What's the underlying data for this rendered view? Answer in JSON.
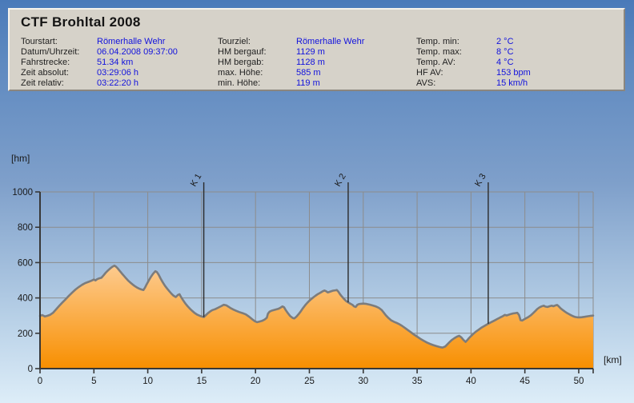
{
  "header": {
    "title": "CTF Brohltal 2008",
    "columns": [
      {
        "rows": [
          {
            "label": "Tourstart:",
            "value": "Römerhalle Wehr"
          },
          {
            "label": "Datum/Uhrzeit:",
            "value": "06.04.2008 09:37:00"
          },
          {
            "label": "Fahrstrecke:",
            "value": "51.34 km"
          },
          {
            "label": "Zeit absolut:",
            "value": "03:29:06 h"
          },
          {
            "label": "Zeit relativ:",
            "value": "03:22:20 h"
          }
        ]
      },
      {
        "rows": [
          {
            "label": "Tourziel:",
            "value": "Römerhalle Wehr"
          },
          {
            "label": "HM bergauf:",
            "value": "1129 m"
          },
          {
            "label": "HM bergab:",
            "value": "1128 m"
          },
          {
            "label": "max. Höhe:",
            "value": "585 m"
          },
          {
            "label": "min. Höhe:",
            "value": "119 m"
          }
        ]
      },
      {
        "rows": [
          {
            "label": "Temp. min:",
            "value": "2 °C"
          },
          {
            "label": "Temp. max:",
            "value": "8 °C"
          },
          {
            "label": "Temp. AV:",
            "value": "4 °C"
          },
          {
            "label": "HF AV:",
            "value": "153 bpm"
          },
          {
            "label": "AVS:",
            "value": "15 km/h"
          }
        ]
      }
    ]
  },
  "colors": {
    "value_text": "#1212dd",
    "label_text": "#1f1f1f",
    "panel_bg": "#d6d2c9",
    "bg_top": "#4a7ab9",
    "bg_bottom": "#ddedf8"
  },
  "chart_data": {
    "type": "area",
    "title": "CTF Brohltal 2008 — Höhenprofil",
    "xlabel": "[km]",
    "ylabel": "[hm]",
    "xlim": [
      0,
      51.34
    ],
    "ylim": [
      0,
      1000
    ],
    "xticks": [
      0,
      5,
      10,
      15,
      20,
      25,
      30,
      35,
      40,
      45,
      50
    ],
    "yticks": [
      0,
      200,
      400,
      600,
      800,
      1000
    ],
    "grid": true,
    "legend": "none",
    "markers": [
      {
        "label": "K 1",
        "km": 15.2
      },
      {
        "label": "K 2",
        "km": 28.6
      },
      {
        "label": "K 3",
        "km": 41.6
      }
    ],
    "colors": {
      "fill_top": "#fdcc92",
      "fill_bottom": "#f88f00",
      "line": "#7c7c7c",
      "grid": "#8c8c8c",
      "axis": "#383838",
      "axis_text": "#1a1a1a",
      "marker": "#2a2a2a"
    },
    "series": [
      {
        "name": "elevation_hm",
        "points": [
          [
            0.0,
            298
          ],
          [
            0.2,
            303
          ],
          [
            0.45,
            295
          ],
          [
            0.7,
            299
          ],
          [
            0.95,
            305
          ],
          [
            1.2,
            316
          ],
          [
            1.5,
            336
          ],
          [
            1.8,
            356
          ],
          [
            2.1,
            376
          ],
          [
            2.4,
            394
          ],
          [
            2.7,
            413
          ],
          [
            3.0,
            431
          ],
          [
            3.3,
            448
          ],
          [
            3.6,
            462
          ],
          [
            3.9,
            474
          ],
          [
            4.2,
            484
          ],
          [
            4.5,
            491
          ],
          [
            4.75,
            497
          ],
          [
            5.0,
            504
          ],
          [
            5.15,
            499
          ],
          [
            5.3,
            506
          ],
          [
            5.5,
            511
          ],
          [
            5.7,
            514
          ],
          [
            5.9,
            528
          ],
          [
            6.1,
            543
          ],
          [
            6.3,
            555
          ],
          [
            6.5,
            566
          ],
          [
            6.7,
            576
          ],
          [
            6.9,
            583
          ],
          [
            7.05,
            577
          ],
          [
            7.2,
            568
          ],
          [
            7.4,
            553
          ],
          [
            7.6,
            538
          ],
          [
            7.8,
            524
          ],
          [
            8.0,
            510
          ],
          [
            8.2,
            497
          ],
          [
            8.4,
            486
          ],
          [
            8.6,
            476
          ],
          [
            8.8,
            467
          ],
          [
            9.0,
            459
          ],
          [
            9.2,
            453
          ],
          [
            9.4,
            448
          ],
          [
            9.6,
            445
          ],
          [
            9.75,
            459
          ],
          [
            9.9,
            477
          ],
          [
            10.1,
            499
          ],
          [
            10.3,
            520
          ],
          [
            10.5,
            537
          ],
          [
            10.7,
            551
          ],
          [
            10.85,
            546
          ],
          [
            11.0,
            532
          ],
          [
            11.2,
            509
          ],
          [
            11.4,
            488
          ],
          [
            11.6,
            469
          ],
          [
            11.8,
            453
          ],
          [
            12.0,
            438
          ],
          [
            12.2,
            424
          ],
          [
            12.4,
            412
          ],
          [
            12.6,
            405
          ],
          [
            12.8,
            417
          ],
          [
            12.95,
            421
          ],
          [
            13.1,
            404
          ],
          [
            13.3,
            385
          ],
          [
            13.5,
            368
          ],
          [
            13.7,
            353
          ],
          [
            13.9,
            340
          ],
          [
            14.1,
            328
          ],
          [
            14.35,
            315
          ],
          [
            14.6,
            305
          ],
          [
            14.85,
            298
          ],
          [
            15.05,
            294
          ],
          [
            15.2,
            292
          ],
          [
            15.4,
            303
          ],
          [
            15.6,
            315
          ],
          [
            15.8,
            324
          ],
          [
            16.0,
            331
          ],
          [
            16.25,
            336
          ],
          [
            16.5,
            344
          ],
          [
            16.8,
            353
          ],
          [
            17.05,
            361
          ],
          [
            17.3,
            358
          ],
          [
            17.5,
            350
          ],
          [
            17.7,
            342
          ],
          [
            17.95,
            334
          ],
          [
            18.2,
            327
          ],
          [
            18.5,
            320
          ],
          [
            18.8,
            314
          ],
          [
            19.1,
            307
          ],
          [
            19.4,
            294
          ],
          [
            19.7,
            279
          ],
          [
            19.95,
            268
          ],
          [
            20.15,
            263
          ],
          [
            20.35,
            266
          ],
          [
            20.6,
            270
          ],
          [
            20.85,
            278
          ],
          [
            21.05,
            288
          ],
          [
            21.15,
            311
          ],
          [
            21.3,
            322
          ],
          [
            21.5,
            328
          ],
          [
            21.7,
            331
          ],
          [
            21.9,
            335
          ],
          [
            22.1,
            338
          ],
          [
            22.3,
            344
          ],
          [
            22.5,
            352
          ],
          [
            22.65,
            347
          ],
          [
            22.8,
            331
          ],
          [
            23.0,
            314
          ],
          [
            23.2,
            298
          ],
          [
            23.45,
            287
          ],
          [
            23.6,
            284
          ],
          [
            23.8,
            294
          ],
          [
            24.0,
            308
          ],
          [
            24.2,
            324
          ],
          [
            24.4,
            342
          ],
          [
            24.6,
            358
          ],
          [
            24.8,
            372
          ],
          [
            25.0,
            384
          ],
          [
            25.2,
            395
          ],
          [
            25.4,
            405
          ],
          [
            25.6,
            414
          ],
          [
            25.8,
            422
          ],
          [
            26.0,
            429
          ],
          [
            26.2,
            436
          ],
          [
            26.4,
            442
          ],
          [
            26.55,
            438
          ],
          [
            26.7,
            431
          ],
          [
            26.85,
            434
          ],
          [
            27.0,
            437
          ],
          [
            27.2,
            441
          ],
          [
            27.4,
            443
          ],
          [
            27.55,
            445
          ],
          [
            27.7,
            435
          ],
          [
            27.85,
            421
          ],
          [
            28.0,
            409
          ],
          [
            28.2,
            395
          ],
          [
            28.4,
            383
          ],
          [
            28.6,
            375
          ],
          [
            28.8,
            368
          ],
          [
            29.0,
            361
          ],
          [
            29.15,
            352
          ],
          [
            29.3,
            349
          ],
          [
            29.45,
            361
          ],
          [
            29.6,
            365
          ],
          [
            29.8,
            367
          ],
          [
            30.0,
            368
          ],
          [
            30.3,
            366
          ],
          [
            30.6,
            362
          ],
          [
            30.9,
            357
          ],
          [
            31.2,
            351
          ],
          [
            31.45,
            344
          ],
          [
            31.7,
            332
          ],
          [
            31.9,
            317
          ],
          [
            32.1,
            302
          ],
          [
            32.35,
            286
          ],
          [
            32.6,
            273
          ],
          [
            32.85,
            265
          ],
          [
            33.1,
            259
          ],
          [
            33.35,
            251
          ],
          [
            33.6,
            242
          ],
          [
            33.85,
            231
          ],
          [
            34.1,
            220
          ],
          [
            34.4,
            207
          ],
          [
            34.7,
            193
          ],
          [
            35.0,
            181
          ],
          [
            35.3,
            169
          ],
          [
            35.6,
            158
          ],
          [
            35.9,
            148
          ],
          [
            36.2,
            140
          ],
          [
            36.5,
            133
          ],
          [
            36.8,
            127
          ],
          [
            37.1,
            122
          ],
          [
            37.35,
            119
          ],
          [
            37.6,
            125
          ],
          [
            37.8,
            137
          ],
          [
            38.0,
            150
          ],
          [
            38.2,
            161
          ],
          [
            38.45,
            172
          ],
          [
            38.7,
            181
          ],
          [
            38.9,
            186
          ],
          [
            39.1,
            177
          ],
          [
            39.3,
            162
          ],
          [
            39.5,
            151
          ],
          [
            39.65,
            161
          ],
          [
            39.8,
            172
          ],
          [
            40.0,
            184
          ],
          [
            40.2,
            196
          ],
          [
            40.45,
            209
          ],
          [
            40.7,
            220
          ],
          [
            40.95,
            231
          ],
          [
            41.2,
            240
          ],
          [
            41.45,
            249
          ],
          [
            41.7,
            257
          ],
          [
            41.95,
            265
          ],
          [
            42.2,
            273
          ],
          [
            42.45,
            281
          ],
          [
            42.7,
            289
          ],
          [
            42.95,
            297
          ],
          [
            43.15,
            304
          ],
          [
            43.3,
            301
          ],
          [
            43.5,
            305
          ],
          [
            43.7,
            309
          ],
          [
            43.9,
            312
          ],
          [
            44.1,
            314
          ],
          [
            44.3,
            316
          ],
          [
            44.45,
            304
          ],
          [
            44.6,
            274
          ],
          [
            44.75,
            272
          ],
          [
            44.95,
            279
          ],
          [
            45.15,
            286
          ],
          [
            45.35,
            293
          ],
          [
            45.55,
            302
          ],
          [
            45.75,
            313
          ],
          [
            45.95,
            325
          ],
          [
            46.15,
            337
          ],
          [
            46.35,
            346
          ],
          [
            46.55,
            352
          ],
          [
            46.75,
            356
          ],
          [
            46.9,
            351
          ],
          [
            47.1,
            349
          ],
          [
            47.3,
            353
          ],
          [
            47.5,
            356
          ],
          [
            47.65,
            353
          ],
          [
            47.85,
            358
          ],
          [
            48.0,
            360
          ],
          [
            48.15,
            352
          ],
          [
            48.3,
            342
          ],
          [
            48.5,
            332
          ],
          [
            48.7,
            323
          ],
          [
            48.9,
            315
          ],
          [
            49.1,
            308
          ],
          [
            49.3,
            302
          ],
          [
            49.5,
            296
          ],
          [
            49.7,
            292
          ],
          [
            49.9,
            290
          ],
          [
            50.1,
            290
          ],
          [
            50.3,
            291
          ],
          [
            50.55,
            293
          ],
          [
            50.8,
            296
          ],
          [
            51.05,
            298
          ],
          [
            51.34,
            300
          ]
        ]
      }
    ]
  }
}
